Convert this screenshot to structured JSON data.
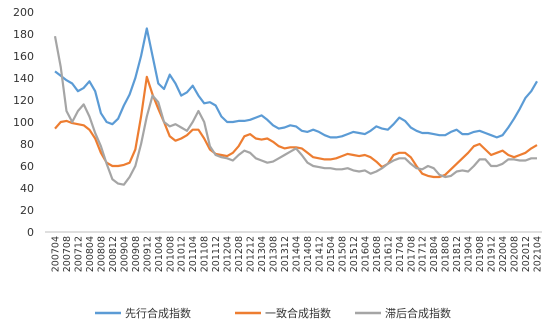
{
  "chart_data": {
    "type": "line",
    "categories": [
      "200704",
      null,
      "200708",
      null,
      "200712",
      null,
      "200804",
      null,
      "200808",
      null,
      "200812",
      null,
      "200904",
      null,
      "200908",
      null,
      "200912",
      null,
      "201004",
      null,
      "201008",
      null,
      "201012",
      null,
      "201104",
      null,
      "201108",
      null,
      "201112",
      null,
      "201204",
      null,
      "201208",
      null,
      "201212",
      null,
      "201304",
      null,
      "201308",
      null,
      "201312",
      null,
      "201404",
      null,
      "201408",
      null,
      "201412",
      null,
      "201504",
      null,
      "201508",
      null,
      "201512",
      null,
      "201604",
      null,
      "201608",
      null,
      "201612",
      null,
      "201704",
      null,
      "201708",
      null,
      "201712",
      null,
      "201804",
      null,
      "201808",
      null,
      "201812",
      null,
      "201904",
      null,
      "201908",
      null,
      "201912",
      null,
      "202004",
      null,
      "202008",
      null,
      "202012",
      null,
      "202104"
    ],
    "series": [
      {
        "name": "先行合成指数",
        "color": "#5b9bd5",
        "values": [
          146,
          142,
          138,
          135,
          128,
          131,
          137,
          128,
          108,
          100,
          98,
          103,
          115,
          125,
          140,
          160,
          185,
          160,
          135,
          130,
          143,
          135,
          124,
          127,
          133,
          124,
          117,
          118,
          115,
          105,
          100,
          100,
          101,
          101,
          102,
          104,
          106,
          102,
          97,
          94,
          95,
          97,
          96,
          92,
          91,
          93,
          91,
          88,
          86,
          86,
          87,
          89,
          91,
          90,
          89,
          92,
          96,
          94,
          93,
          98,
          104,
          101,
          95,
          92,
          90,
          90,
          89,
          88,
          88,
          91,
          93,
          89,
          89,
          91,
          92,
          90,
          88,
          86,
          88,
          95,
          103,
          112,
          122,
          128,
          137
        ]
      },
      {
        "name": "一致合成指数",
        "color": "#ed7d31",
        "values": [
          94,
          100,
          101,
          99,
          98,
          97,
          93,
          85,
          72,
          63,
          60,
          60,
          61,
          63,
          75,
          105,
          141,
          125,
          112,
          100,
          87,
          83,
          85,
          88,
          93,
          93,
          85,
          75,
          71,
          70,
          69,
          72,
          78,
          87,
          89,
          85,
          84,
          85,
          82,
          78,
          76,
          77,
          77,
          76,
          72,
          68,
          67,
          66,
          66,
          67,
          69,
          71,
          70,
          69,
          70,
          68,
          64,
          59,
          62,
          70,
          72,
          72,
          68,
          60,
          53,
          51,
          50,
          50,
          52,
          57,
          62,
          67,
          72,
          78,
          80,
          75,
          70,
          72,
          74,
          70,
          68,
          70,
          72,
          76,
          79
        ]
      },
      {
        "name": "滞后合成指数",
        "color": "#a5a5a5",
        "values": [
          178,
          150,
          110,
          100,
          110,
          116,
          105,
          90,
          78,
          62,
          48,
          44,
          43,
          50,
          60,
          80,
          105,
          124,
          118,
          100,
          96,
          98,
          95,
          92,
          100,
          110,
          100,
          78,
          70,
          68,
          67,
          65,
          70,
          74,
          72,
          67,
          65,
          63,
          64,
          67,
          70,
          73,
          76,
          70,
          63,
          60,
          59,
          58,
          58,
          57,
          57,
          58,
          56,
          55,
          56,
          53,
          55,
          58,
          62,
          65,
          67,
          67,
          62,
          58,
          57,
          60,
          58,
          52,
          50,
          51,
          55,
          56,
          55,
          60,
          66,
          66,
          60,
          60,
          62,
          66,
          66,
          65,
          65,
          67,
          67
        ]
      }
    ],
    "ylim": [
      0,
      200
    ],
    "yticks": [
      0,
      20,
      40,
      60,
      80,
      100,
      120,
      140,
      160,
      180,
      200
    ],
    "grid": false,
    "legend": "bottom"
  }
}
